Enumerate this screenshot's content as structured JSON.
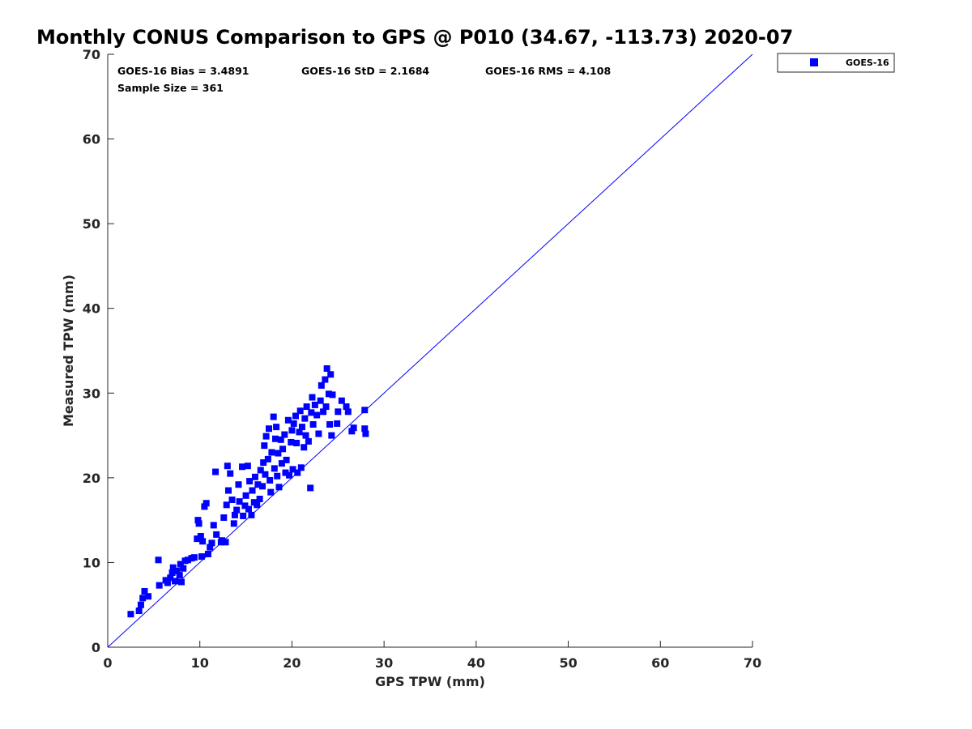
{
  "chart_data": {
    "type": "scatter",
    "title": "Monthly CONUS Comparison to GPS @ P010 (34.67, -113.73) 2020-07",
    "xlabel": "GPS TPW (mm)",
    "ylabel": "Measured TPW (mm)",
    "xlim": [
      0,
      70
    ],
    "ylim": [
      0,
      70
    ],
    "xticks": [
      "0",
      "10",
      "20",
      "30",
      "40",
      "50",
      "60",
      "70"
    ],
    "yticks": [
      "0",
      "10",
      "20",
      "30",
      "40",
      "50",
      "60",
      "70"
    ],
    "grid": false,
    "legend_position": "outside-top-right",
    "annotations": {
      "bias": "GOES-16 Bias = 3.4891",
      "std": "GOES-16 StD = 2.1684",
      "rms": "GOES-16 RMS = 4.108",
      "sample_size": "Sample Size = 361"
    },
    "reference_line": {
      "x": [
        0,
        70
      ],
      "y": [
        0,
        70
      ],
      "color": "#0000ff"
    },
    "series": [
      {
        "name": "GOES-16",
        "color": "#0000ff",
        "marker": "square",
        "points": [
          [
            2.5,
            3.9
          ],
          [
            3.4,
            4.3
          ],
          [
            3.6,
            5.0
          ],
          [
            3.8,
            5.8
          ],
          [
            4.0,
            6.6
          ],
          [
            4.4,
            6.0
          ],
          [
            5.5,
            10.3
          ],
          [
            5.6,
            7.3
          ],
          [
            6.3,
            7.9
          ],
          [
            6.5,
            7.6
          ],
          [
            6.8,
            8.2
          ],
          [
            7.0,
            8.8
          ],
          [
            7.1,
            9.4
          ],
          [
            7.3,
            7.8
          ],
          [
            7.5,
            9.0
          ],
          [
            7.8,
            8.5
          ],
          [
            7.9,
            9.8
          ],
          [
            8.0,
            7.7
          ],
          [
            8.2,
            9.3
          ],
          [
            8.4,
            10.2
          ],
          [
            8.7,
            10.3
          ],
          [
            9.1,
            10.5
          ],
          [
            9.4,
            10.6
          ],
          [
            9.7,
            12.8
          ],
          [
            9.8,
            15.0
          ],
          [
            9.9,
            14.6
          ],
          [
            10.1,
            13.1
          ],
          [
            10.2,
            10.7
          ],
          [
            10.3,
            12.5
          ],
          [
            10.5,
            16.6
          ],
          [
            10.7,
            17.0
          ],
          [
            10.9,
            11.0
          ],
          [
            11.1,
            11.8
          ],
          [
            11.3,
            12.3
          ],
          [
            11.5,
            14.4
          ],
          [
            11.8,
            13.3
          ],
          [
            11.7,
            20.7
          ],
          [
            12.3,
            12.4
          ],
          [
            12.4,
            12.6
          ],
          [
            12.6,
            15.3
          ],
          [
            12.8,
            12.4
          ],
          [
            12.9,
            16.8
          ],
          [
            13.0,
            21.4
          ],
          [
            13.1,
            18.5
          ],
          [
            13.3,
            20.5
          ],
          [
            13.5,
            17.4
          ],
          [
            13.7,
            14.6
          ],
          [
            13.8,
            15.6
          ],
          [
            14.0,
            16.2
          ],
          [
            14.2,
            19.2
          ],
          [
            14.3,
            17.2
          ],
          [
            14.6,
            21.3
          ],
          [
            14.7,
            15.5
          ],
          [
            14.9,
            16.7
          ],
          [
            15.0,
            17.9
          ],
          [
            15.2,
            21.4
          ],
          [
            15.3,
            16.3
          ],
          [
            15.4,
            19.6
          ],
          [
            15.6,
            15.6
          ],
          [
            15.7,
            18.5
          ],
          [
            15.9,
            17.1
          ],
          [
            16.0,
            20.1
          ],
          [
            16.2,
            16.8
          ],
          [
            16.3,
            19.2
          ],
          [
            16.5,
            17.5
          ],
          [
            16.6,
            20.9
          ],
          [
            16.8,
            19.0
          ],
          [
            16.9,
            21.8
          ],
          [
            17.0,
            23.8
          ],
          [
            17.1,
            20.4
          ],
          [
            17.2,
            24.9
          ],
          [
            17.4,
            22.2
          ],
          [
            17.5,
            25.8
          ],
          [
            17.6,
            19.7
          ],
          [
            17.7,
            18.3
          ],
          [
            17.8,
            23.0
          ],
          [
            18.0,
            27.2
          ],
          [
            18.1,
            21.1
          ],
          [
            18.2,
            24.6
          ],
          [
            18.3,
            26.0
          ],
          [
            18.4,
            20.2
          ],
          [
            18.5,
            22.9
          ],
          [
            18.6,
            18.9
          ],
          [
            18.8,
            24.5
          ],
          [
            18.9,
            21.7
          ],
          [
            19.0,
            23.4
          ],
          [
            19.2,
            25.1
          ],
          [
            19.3,
            20.6
          ],
          [
            19.4,
            22.1
          ],
          [
            19.6,
            26.8
          ],
          [
            19.7,
            20.3
          ],
          [
            19.9,
            24.2
          ],
          [
            20.0,
            25.6
          ],
          [
            20.1,
            21.0
          ],
          [
            20.2,
            26.4
          ],
          [
            20.4,
            27.3
          ],
          [
            20.5,
            24.1
          ],
          [
            20.6,
            20.6
          ],
          [
            20.8,
            25.4
          ],
          [
            20.9,
            27.9
          ],
          [
            21.0,
            21.2
          ],
          [
            21.1,
            26.0
          ],
          [
            21.3,
            23.6
          ],
          [
            21.4,
            27.0
          ],
          [
            21.5,
            25.0
          ],
          [
            21.6,
            28.4
          ],
          [
            21.8,
            24.3
          ],
          [
            22.0,
            18.8
          ],
          [
            22.1,
            27.7
          ],
          [
            22.2,
            29.5
          ],
          [
            22.3,
            26.3
          ],
          [
            22.5,
            28.6
          ],
          [
            22.7,
            27.4
          ],
          [
            22.9,
            25.2
          ],
          [
            23.1,
            29.1
          ],
          [
            23.2,
            30.9
          ],
          [
            23.4,
            27.8
          ],
          [
            23.6,
            31.6
          ],
          [
            23.7,
            28.4
          ],
          [
            23.8,
            32.9
          ],
          [
            24.0,
            29.9
          ],
          [
            24.1,
            26.3
          ],
          [
            24.2,
            32.2
          ],
          [
            24.3,
            25.0
          ],
          [
            24.4,
            29.8
          ],
          [
            24.9,
            26.4
          ],
          [
            25.0,
            27.8
          ],
          [
            25.4,
            29.1
          ],
          [
            25.9,
            28.4
          ],
          [
            26.1,
            27.8
          ],
          [
            26.5,
            25.5
          ],
          [
            26.7,
            25.9
          ],
          [
            27.9,
            28.0
          ],
          [
            27.9,
            25.8
          ],
          [
            28.0,
            25.2
          ]
        ]
      }
    ]
  }
}
